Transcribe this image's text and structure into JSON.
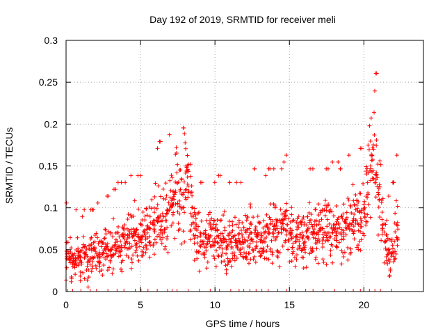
{
  "chart_data": {
    "type": "scatter",
    "title": "Day 192 of 2019, SRMTID for receiver meli",
    "xlabel": "GPS time / hours",
    "ylabel": "SRMTID / TECUs",
    "xlim": [
      0,
      24
    ],
    "ylim": [
      0,
      0.3
    ],
    "x_ticks": [
      0,
      5,
      10,
      15,
      20
    ],
    "x_tick_labels": [
      "0",
      "5",
      "10",
      "15",
      "20"
    ],
    "y_ticks": [
      0,
      0.05,
      0.1,
      0.15,
      0.2,
      0.25,
      0.3
    ],
    "y_tick_labels": [
      "0",
      "0.05",
      "0.1",
      "0.15",
      "0.2",
      "0.25",
      "0.3"
    ],
    "grid": true,
    "legend": "none",
    "marker": "plus",
    "color": "#ff0000",
    "series": [
      {
        "x": [
          0.05,
          0.25,
          0.45,
          0.65,
          0.85,
          1.05,
          1.25,
          1.45,
          1.65,
          1.85,
          2.05,
          2.25,
          2.45,
          2.65,
          2.85,
          3.05,
          3.25,
          3.45,
          3.65,
          3.85,
          4.05,
          4.25,
          4.45,
          4.65,
          4.85,
          5.05,
          5.25,
          5.45,
          5.65,
          5.85,
          6.05,
          6.25,
          6.45,
          6.65,
          6.85,
          7.05,
          7.25,
          7.45,
          7.65,
          7.85,
          8.05,
          8.25,
          8.45,
          8.65,
          8.85,
          9.05,
          9.25,
          9.45,
          9.65,
          9.85,
          10.05,
          10.25,
          10.45,
          10.65,
          10.85,
          11.05,
          11.25,
          11.45,
          11.65,
          11.85,
          12.05,
          12.25,
          12.45,
          12.65,
          12.85,
          13.05,
          13.25,
          13.45,
          13.65,
          13.85,
          14.05,
          14.25,
          14.45,
          14.65,
          14.85,
          15.05,
          15.25,
          15.45,
          15.65,
          15.85,
          16.05,
          16.25,
          16.45,
          16.65,
          16.85,
          17.05,
          17.25,
          17.45,
          17.65,
          17.85,
          18.05,
          18.25,
          18.45,
          18.65,
          18.85,
          19.05,
          19.25,
          19.45,
          19.65,
          19.85,
          20.05,
          20.25,
          20.45,
          20.65,
          20.85,
          21.05,
          21.25,
          21.45,
          21.65,
          21.85,
          22.05,
          22.2
        ],
        "y": [
          0.045,
          0.04,
          0.035,
          0.04,
          0.04,
          0.035,
          0.04,
          0.035,
          0.04,
          0.04,
          0.045,
          0.04,
          0.045,
          0.05,
          0.05,
          0.05,
          0.055,
          0.06,
          0.06,
          0.065,
          0.06,
          0.065,
          0.065,
          0.07,
          0.065,
          0.065,
          0.07,
          0.07,
          0.075,
          0.08,
          0.085,
          0.09,
          0.085,
          0.09,
          0.095,
          0.1,
          0.11,
          0.13,
          0.12,
          0.1,
          0.15,
          0.12,
          0.09,
          0.075,
          0.065,
          0.06,
          0.06,
          0.065,
          0.065,
          0.06,
          0.06,
          0.065,
          0.06,
          0.06,
          0.055,
          0.06,
          0.065,
          0.06,
          0.06,
          0.065,
          0.06,
          0.065,
          0.07,
          0.07,
          0.065,
          0.06,
          0.06,
          0.065,
          0.07,
          0.07,
          0.075,
          0.07,
          0.07,
          0.075,
          0.08,
          0.075,
          0.065,
          0.06,
          0.06,
          0.065,
          0.06,
          0.065,
          0.07,
          0.07,
          0.07,
          0.075,
          0.075,
          0.07,
          0.07,
          0.075,
          0.08,
          0.075,
          0.07,
          0.07,
          0.075,
          0.08,
          0.085,
          0.085,
          0.08,
          0.085,
          0.1,
          0.13,
          0.15,
          0.17,
          0.14,
          0.11,
          0.08,
          0.06,
          0.05,
          0.045,
          0.06,
          0.08
        ]
      }
    ]
  }
}
